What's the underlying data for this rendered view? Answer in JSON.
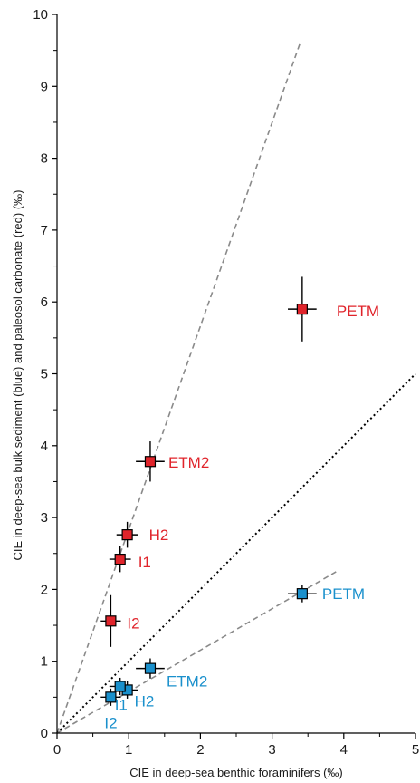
{
  "chart_data": {
    "type": "scatter",
    "title": "",
    "xlabel": "CIE in deep-sea benthic foraminifers (‰)",
    "ylabel": "CIE in deep-sea bulk sediment (blue) and paleosol carbonate (red) (‰)",
    "xlim": [
      0,
      5
    ],
    "ylim": [
      0,
      10
    ],
    "x_ticks": [
      "0",
      "1",
      "2",
      "3",
      "4",
      "5"
    ],
    "y_ticks": [
      "0",
      "1",
      "2",
      "3",
      "4",
      "5",
      "6",
      "7",
      "8",
      "9",
      "10"
    ],
    "grid": false,
    "series": [
      {
        "color": "#e0242b",
        "points": [
          {
            "label": "PETM",
            "x": 3.42,
            "y": 5.9,
            "xerr": 0.2,
            "yerr": 0.45
          },
          {
            "label": "ETM2",
            "x": 1.3,
            "y": 3.78,
            "xerr": 0.2,
            "yerr": 0.28
          },
          {
            "label": "H2",
            "x": 0.98,
            "y": 2.76,
            "xerr": 0.15,
            "yerr": 0.18
          },
          {
            "label": "I1",
            "x": 0.88,
            "y": 2.42,
            "xerr": 0.15,
            "yerr": 0.18
          },
          {
            "label": "I2",
            "x": 0.75,
            "y": 1.56,
            "xerr": 0.14,
            "yerr": 0.36
          }
        ]
      },
      {
        "color": "#1a90cc",
        "points": [
          {
            "label": "PETM",
            "x": 3.42,
            "y": 1.94,
            "xerr": 0.2,
            "yerr": 0.12
          },
          {
            "label": "ETM2",
            "x": 1.3,
            "y": 0.9,
            "xerr": 0.2,
            "yerr": 0.14
          },
          {
            "label": "H2",
            "x": 0.98,
            "y": 0.6,
            "xerr": 0.15,
            "yerr": 0.12
          },
          {
            "label": "I1",
            "x": 0.88,
            "y": 0.65,
            "xerr": 0.15,
            "yerr": 0.12
          },
          {
            "label": "I2",
            "x": 0.75,
            "y": 0.5,
            "xerr": 0.14,
            "yerr": 0.12
          }
        ]
      }
    ],
    "reference_lines": [
      {
        "style": "dashed",
        "color": "#8a8a8a",
        "from": [
          0,
          0
        ],
        "to": [
          3.39,
          9.6
        ]
      },
      {
        "style": "dotted",
        "color": "#000000",
        "from": [
          0,
          0
        ],
        "to": [
          5,
          5
        ]
      },
      {
        "style": "dashed",
        "color": "#8a8a8a",
        "from": [
          0,
          0
        ],
        "to": [
          3.9,
          2.25
        ]
      }
    ]
  }
}
